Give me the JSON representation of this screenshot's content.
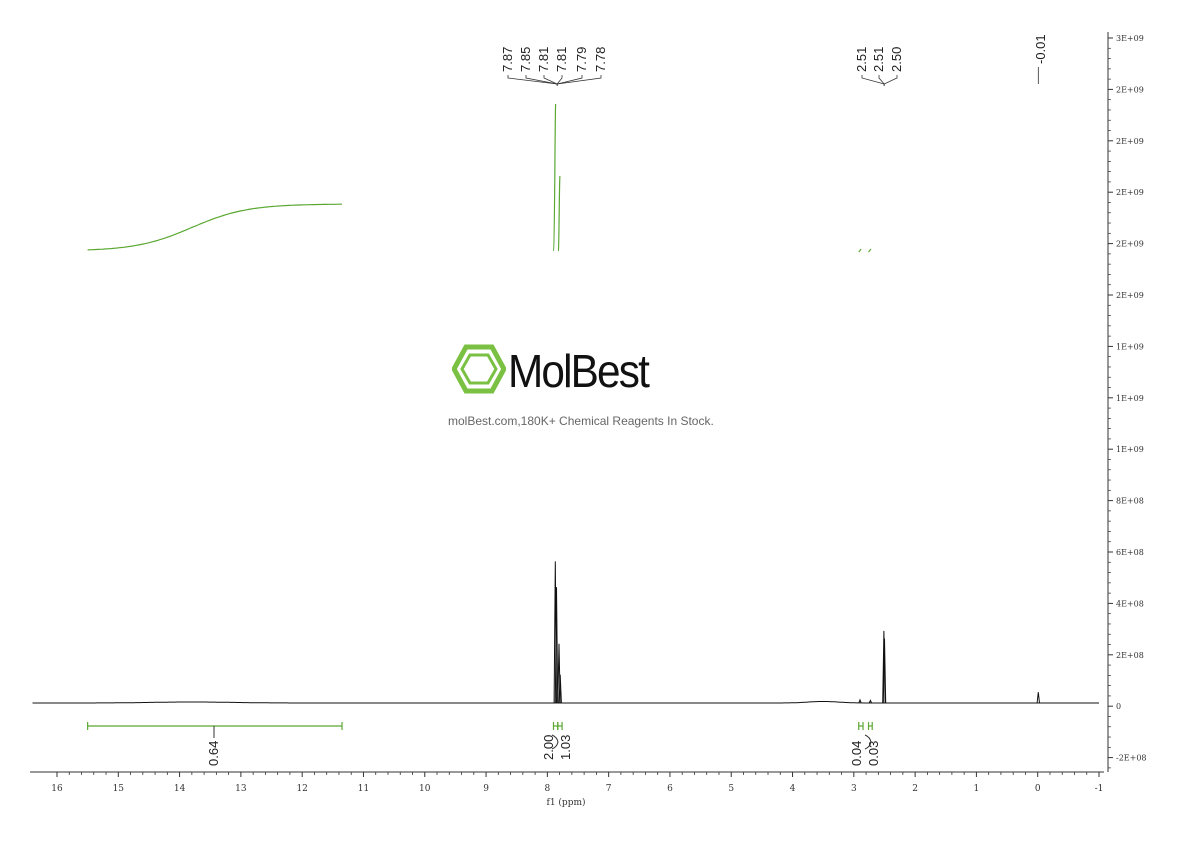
{
  "chart_data": {
    "type": "line",
    "xlabel": "f1 (ppm)",
    "x_range": [
      16.4,
      -1.0
    ],
    "x_ticks": [
      16,
      15,
      14,
      13,
      12,
      11,
      10,
      9,
      8,
      7,
      6,
      5,
      4,
      3,
      2,
      1,
      0,
      -1
    ],
    "y_ticks": [
      "3E+09",
      "2E+09",
      "2E+09",
      "2E+09",
      "2E+09",
      "2E+09",
      "1E+09",
      "1E+09",
      "1E+09",
      "8E+08",
      "6E+08",
      "4E+08",
      "2E+08",
      "0",
      "-2E+08"
    ],
    "peaks": [
      {
        "ppm": 7.87,
        "height": 550000000.0
      },
      {
        "ppm": 7.85,
        "height": 450000000.0
      },
      {
        "ppm": 7.81,
        "height": 230000000.0
      },
      {
        "ppm": 7.79,
        "height": 110000000.0
      },
      {
        "ppm": 2.9,
        "height": 12000000.0
      },
      {
        "ppm": 2.73,
        "height": 10000000.0
      },
      {
        "ppm": 2.51,
        "height": 280000000.0
      },
      {
        "ppm": 2.5,
        "height": 250000000.0
      },
      {
        "ppm": -0.01,
        "height": 42000000.0
      }
    ],
    "peak_labels": [
      {
        "group": "aromatic",
        "labels": [
          "7.87",
          "7.85",
          "7.81",
          "7.81",
          "7.79",
          "7.78"
        ]
      },
      {
        "group": "dmso",
        "labels": [
          "2.51",
          "2.51",
          "2.50"
        ]
      },
      {
        "group": "tms",
        "labels": [
          "-0.01"
        ]
      }
    ],
    "integrals": [
      {
        "from": 15.5,
        "to": 11.35,
        "value": "0.64"
      },
      {
        "from": 7.9,
        "to": 7.83,
        "value": "2.00"
      },
      {
        "from": 7.83,
        "to": 7.76,
        "value": "1.03"
      },
      {
        "from": 2.92,
        "to": 2.85,
        "value": "0.04"
      },
      {
        "from": 2.76,
        "to": 2.7,
        "value": "0.03"
      }
    ],
    "colors": {
      "spectrum": "#111111",
      "integral": "#5aa832"
    }
  },
  "watermark": {
    "brand": "MolBest",
    "tagline": "molBest.com,180K+ Chemical Reagents In Stock."
  }
}
